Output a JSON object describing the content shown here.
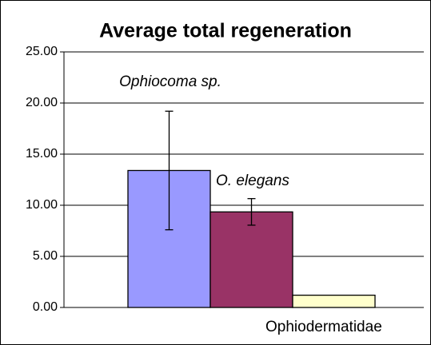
{
  "chart_data": {
    "type": "bar",
    "title": "Average total regeneration",
    "categories": [
      null
    ],
    "series": [
      {
        "name": "Ophiocoma sp.",
        "color": "#9999ff",
        "values": [
          13.4
        ],
        "errors": [
          5.8
        ]
      },
      {
        "name": "O. elegans",
        "color": "#993366",
        "values": [
          9.35
        ],
        "errors": [
          1.3
        ]
      },
      {
        "name": "Ophiodermatidae",
        "color": "#ffffcc",
        "values": [
          1.2
        ]
      }
    ],
    "ylim": [
      0,
      25
    ],
    "yticks": [
      {
        "value": 0,
        "label": "0.00"
      },
      {
        "value": 5,
        "label": "5.00"
      },
      {
        "value": 10,
        "label": "10.00"
      },
      {
        "value": 15,
        "label": "15.00"
      },
      {
        "value": 20,
        "label": "20.00"
      },
      {
        "value": 25,
        "label": "25.00"
      }
    ],
    "grid": true
  }
}
